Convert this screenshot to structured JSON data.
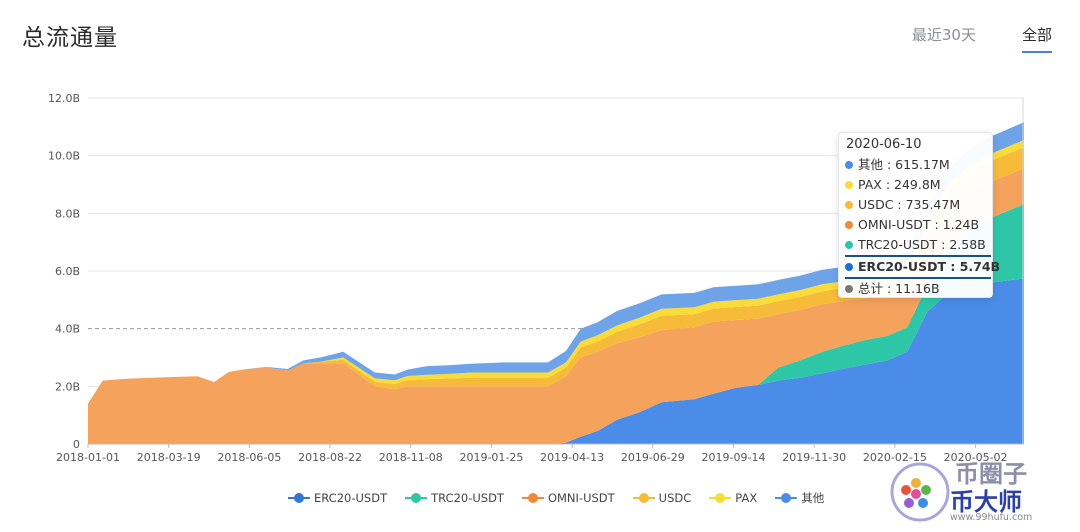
{
  "header": {
    "title": "总流通量"
  },
  "tabs": [
    {
      "label": "最近30天",
      "active": false
    },
    {
      "label": "全部",
      "active": true
    }
  ],
  "chart_data": {
    "type": "area",
    "stacked": true,
    "y_unit": "B (billions)",
    "ylim": [
      0,
      12
    ],
    "yticks": [
      "0",
      "2.0B",
      "4.0B",
      "6.0B",
      "8.0B",
      "10.0B",
      "12.0B"
    ],
    "xticks": [
      "2018-01-01",
      "2018-03-19",
      "2018-06-05",
      "2018-08-22",
      "2018-11-08",
      "2019-01-25",
      "2019-04-13",
      "2019-06-29",
      "2019-09-14",
      "2019-11-30",
      "2020-02-15",
      "2020-05-02"
    ],
    "x": [
      "2018-01-01",
      "2018-01-15",
      "2018-02-01",
      "2018-03-01",
      "2018-04-15",
      "2018-05-01",
      "2018-05-15",
      "2018-06-01",
      "2018-06-20",
      "2018-07-10",
      "2018-07-25",
      "2018-08-10",
      "2018-09-01",
      "2018-10-01",
      "2018-10-20",
      "2018-11-01",
      "2018-11-20",
      "2018-12-10",
      "2019-01-01",
      "2019-02-01",
      "2019-03-15",
      "2019-04-01",
      "2019-04-15",
      "2019-05-01",
      "2019-05-20",
      "2019-06-10",
      "2019-07-01",
      "2019-08-01",
      "2019-08-20",
      "2019-09-10",
      "2019-10-01",
      "2019-10-20",
      "2019-11-10",
      "2019-12-01",
      "2019-12-20",
      "2020-01-10",
      "2020-02-01",
      "2020-02-20",
      "2020-03-10",
      "2020-04-01",
      "2020-04-20",
      "2020-05-10",
      "2020-06-10"
    ],
    "series": [
      {
        "name": "ERC20-USDT",
        "color": "#4a8ce8",
        "values": [
          0,
          0,
          0,
          0,
          0,
          0,
          0,
          0,
          0,
          0,
          0,
          0,
          0,
          0,
          0,
          0,
          0,
          0,
          0,
          0,
          0,
          0.05,
          0.25,
          0.45,
          0.85,
          1.1,
          1.45,
          1.55,
          1.75,
          1.95,
          2.05,
          2.2,
          2.3,
          2.45,
          2.6,
          2.75,
          2.9,
          3.2,
          4.6,
          5.3,
          5.5,
          5.6,
          5.74
        ]
      },
      {
        "name": "TRC20-USDT",
        "color": "#2dc7a8",
        "values": [
          0,
          0,
          0,
          0,
          0,
          0,
          0,
          0,
          0,
          0,
          0,
          0,
          0,
          0,
          0,
          0,
          0,
          0,
          0,
          0,
          0,
          0,
          0,
          0,
          0,
          0,
          0,
          0,
          0,
          0,
          0,
          0.45,
          0.6,
          0.75,
          0.8,
          0.85,
          0.85,
          0.85,
          0.9,
          1.6,
          1.95,
          2.25,
          2.58
        ]
      },
      {
        "name": "OMNI-USDT",
        "color": "#f5a25d",
        "values": [
          1.4,
          2.2,
          2.25,
          2.3,
          2.35,
          2.15,
          2.5,
          2.6,
          2.65,
          2.55,
          2.8,
          2.8,
          2.8,
          2.0,
          1.9,
          2.0,
          2.0,
          2.0,
          2.0,
          2.0,
          2.0,
          2.3,
          2.75,
          2.75,
          2.65,
          2.6,
          2.5,
          2.5,
          2.5,
          2.35,
          2.3,
          1.85,
          1.75,
          1.65,
          1.55,
          1.45,
          1.35,
          1.3,
          1.3,
          1.3,
          1.27,
          1.25,
          1.24
        ]
      },
      {
        "name": "USDC",
        "color": "#f7bb3a",
        "values": [
          0,
          0,
          0,
          0,
          0,
          0,
          0,
          0,
          0,
          0,
          0,
          0.05,
          0.12,
          0.16,
          0.18,
          0.22,
          0.25,
          0.27,
          0.3,
          0.3,
          0.3,
          0.3,
          0.35,
          0.35,
          0.4,
          0.45,
          0.5,
          0.45,
          0.45,
          0.45,
          0.45,
          0.45,
          0.45,
          0.45,
          0.45,
          0.5,
          0.55,
          0.55,
          0.6,
          0.65,
          0.7,
          0.72,
          0.735
        ]
      },
      {
        "name": "PAX",
        "color": "#f9dc37",
        "values": [
          0,
          0,
          0,
          0,
          0,
          0,
          0,
          0,
          0,
          0,
          0,
          0,
          0.08,
          0.12,
          0.13,
          0.14,
          0.15,
          0.16,
          0.18,
          0.18,
          0.18,
          0.18,
          0.2,
          0.22,
          0.22,
          0.23,
          0.24,
          0.24,
          0.24,
          0.24,
          0.24,
          0.24,
          0.24,
          0.24,
          0.24,
          0.24,
          0.24,
          0.24,
          0.24,
          0.245,
          0.25,
          0.25,
          0.25
        ]
      },
      {
        "name": "其他",
        "color": "#6ea3e8",
        "values": [
          0,
          0,
          0,
          0,
          0,
          0,
          0,
          0,
          0.02,
          0.05,
          0.1,
          0.15,
          0.2,
          0.2,
          0.2,
          0.22,
          0.3,
          0.3,
          0.3,
          0.35,
          0.35,
          0.4,
          0.45,
          0.45,
          0.5,
          0.5,
          0.5,
          0.5,
          0.5,
          0.5,
          0.5,
          0.5,
          0.5,
          0.5,
          0.5,
          0.5,
          0.55,
          0.55,
          0.55,
          0.55,
          0.58,
          0.6,
          0.615
        ]
      }
    ],
    "reference_line": {
      "value": 4.0,
      "style": "dashed"
    },
    "tooltip": {
      "date": "2020-06-10",
      "rows": [
        {
          "label": "其他 : 615.17M",
          "color": "#4a8ce8"
        },
        {
          "label": "PAX : 249.8M",
          "color": "#f9dc37"
        },
        {
          "label": "USDC : 735.47M",
          "color": "#f7bb3a"
        },
        {
          "label": "OMNI-USDT : 1.24B",
          "color": "#f08a38"
        },
        {
          "label": "TRC20-USDT : 2.58B",
          "color": "#2dc7a8"
        },
        {
          "label": "ERC20-USDT : 5.74B",
          "color": "#1f6fd1"
        },
        {
          "label": "总计 : 11.16B",
          "color": "#777777"
        }
      ]
    },
    "legend_position": "bottom-center"
  },
  "legend": [
    {
      "label": "ERC20-USDT",
      "color": "#2f77d4"
    },
    {
      "label": "TRC20-USDT",
      "color": "#2dc7a8"
    },
    {
      "label": "OMNI-USDT",
      "color": "#f08a38"
    },
    {
      "label": "USDC",
      "color": "#f7bb3a"
    },
    {
      "label": "PAX",
      "color": "#f9dc37"
    },
    {
      "label": "其他",
      "color": "#4a8ce8"
    }
  ],
  "watermark": {
    "logo_text": "币圈子",
    "brand": "币大师",
    "url": "www.99hufu.com"
  }
}
